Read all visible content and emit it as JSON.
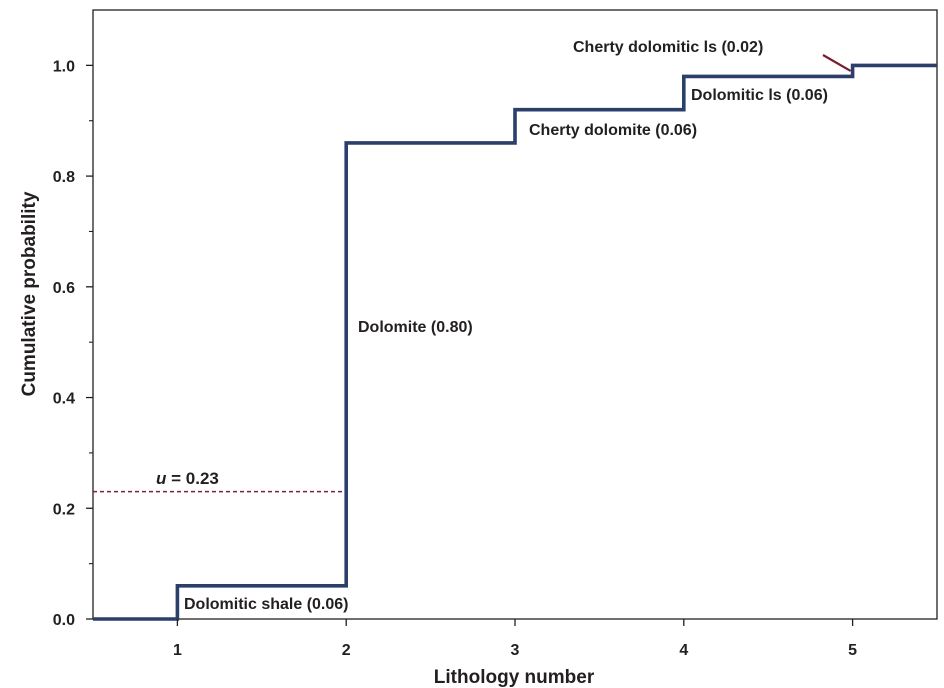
{
  "chart_data": {
    "type": "line",
    "step": true,
    "xlabel": "Lithology number",
    "ylabel": "Cumulative probability",
    "xlim": [
      0.5,
      5.5
    ],
    "ylim": [
      0.0,
      1.1
    ],
    "xticks": [
      1,
      2,
      3,
      4,
      5
    ],
    "xtick_labels": [
      "1",
      "2",
      "3",
      "4",
      "5"
    ],
    "yticks": [
      0.0,
      0.2,
      0.4,
      0.6,
      0.8,
      1.0
    ],
    "ytick_labels": [
      "0.0",
      "0.2",
      "0.4",
      "0.6",
      "0.8",
      "1.0"
    ],
    "grid": false,
    "series": [
      {
        "color": "#2b3f6b",
        "x": [
          0.5,
          1,
          1,
          2,
          2,
          3,
          3,
          4,
          4,
          5,
          5,
          5.5
        ],
        "y": [
          0.0,
          0.0,
          0.06,
          0.06,
          0.86,
          0.86,
          0.92,
          0.92,
          0.98,
          0.98,
          1.0,
          1.0
        ]
      }
    ],
    "reference_line": {
      "y": 0.23,
      "x_from": 0.5,
      "x_to": 2,
      "style": "dashed",
      "color": "#7a2048"
    },
    "u_label": {
      "variable": "u",
      "text": " = 0.23"
    },
    "annotations": [
      {
        "id": "dolomitic-shale",
        "text": "Dolomitic shale (0.06)"
      },
      {
        "id": "dolomite",
        "text": "Dolomite (0.80)"
      },
      {
        "id": "cherty-dolomite",
        "text": "Cherty dolomite (0.06)"
      },
      {
        "id": "dolomitic-ls",
        "text": "Dolomitic ls (0.06)"
      },
      {
        "id": "cherty-dolomitic-ls",
        "text": "Cherty dolomitic ls (0.02)"
      }
    ],
    "pointer_color": "#7a1c2e"
  }
}
